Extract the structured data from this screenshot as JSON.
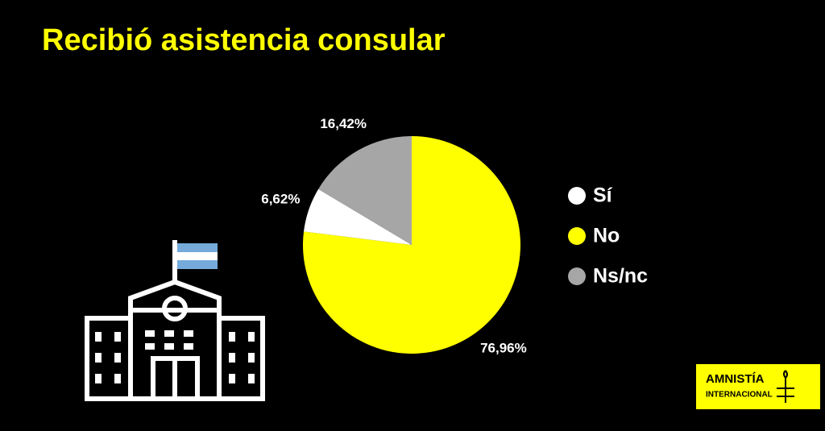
{
  "chart_data": {
    "type": "pie",
    "title": "Recibió asistencia consular",
    "categories": [
      "Sí",
      "No",
      "Ns/nc"
    ],
    "values": [
      6.62,
      76.96,
      16.42
    ],
    "value_labels": [
      "6,62%",
      "76,96%",
      "16,42%"
    ],
    "colors": [
      "#ffffff",
      "#ffff00",
      "#a6a6a6"
    ]
  },
  "logo": [
    "AMNISTÍA",
    "INTERNACIONAL"
  ]
}
